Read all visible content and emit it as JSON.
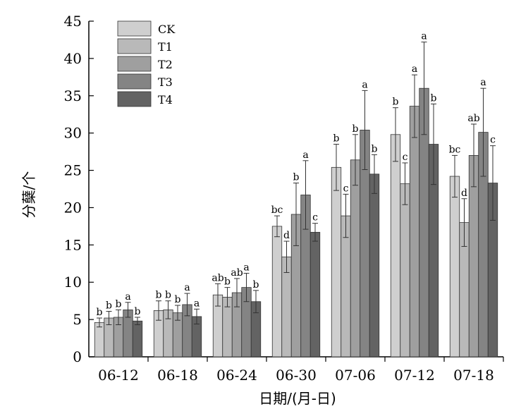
{
  "chart_data": {
    "type": "bar",
    "xlabel": "日期/(月-日)",
    "ylabel": "分蘖/个",
    "ylim": [
      0,
      45
    ],
    "yticks": [
      0,
      5,
      10,
      15,
      20,
      25,
      30,
      35,
      40,
      45
    ],
    "categories": [
      "06-12",
      "06-18",
      "06-24",
      "06-30",
      "07-06",
      "07-12",
      "07-18"
    ],
    "legend_position": "top-left",
    "series": [
      {
        "name": "CK",
        "color": "#cfcfcf",
        "values": [
          4.6,
          6.2,
          8.3,
          17.5,
          25.4,
          29.8,
          24.2
        ],
        "errors": [
          0.6,
          1.3,
          1.5,
          1.4,
          3.1,
          3.6,
          2.8
        ],
        "labels": [
          "b",
          "b",
          "ab",
          "bc",
          "b",
          "b",
          "bc"
        ]
      },
      {
        "name": "T1",
        "color": "#b9b9b9",
        "values": [
          5.2,
          6.3,
          8.0,
          13.4,
          18.9,
          23.2,
          18.0
        ],
        "errors": [
          0.9,
          1.2,
          1.3,
          2.1,
          2.9,
          2.8,
          3.2
        ],
        "labels": [
          "b",
          "b",
          "b",
          "d",
          "c",
          "c",
          "d"
        ]
      },
      {
        "name": "T2",
        "color": "#9f9f9f",
        "values": [
          5.3,
          5.9,
          8.6,
          19.1,
          26.4,
          33.6,
          27.0
        ],
        "errors": [
          1.0,
          1.0,
          1.9,
          4.2,
          3.4,
          4.2,
          4.2
        ],
        "labels": [
          "b",
          "b",
          "ab",
          "b",
          "b",
          "a",
          "ab"
        ]
      },
      {
        "name": "T3",
        "color": "#848484",
        "values": [
          6.3,
          7.0,
          9.3,
          21.7,
          30.4,
          36.0,
          30.1
        ],
        "errors": [
          1.0,
          1.5,
          1.9,
          4.6,
          5.3,
          6.2,
          5.9
        ],
        "labels": [
          "a",
          "a",
          "a",
          "a",
          "a",
          "a",
          "a"
        ]
      },
      {
        "name": "T4",
        "color": "#636363",
        "values": [
          4.8,
          5.4,
          7.4,
          16.7,
          24.5,
          28.5,
          23.3
        ],
        "errors": [
          0.5,
          1.0,
          1.5,
          1.2,
          2.6,
          5.4,
          5.0
        ],
        "labels": [
          "b",
          "a",
          "b",
          "c",
          "b",
          "b",
          "c"
        ]
      }
    ]
  }
}
